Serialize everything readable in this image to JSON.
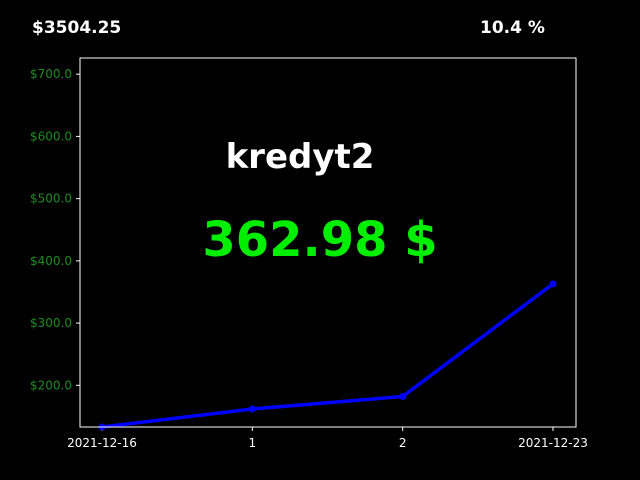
{
  "header": {
    "total": "$3504.25",
    "percent": "10.4 %"
  },
  "overlay": {
    "name": "kredyt2",
    "value": "362.98 $"
  },
  "colors": {
    "background": "#000000",
    "line": "#0000ff",
    "tick_labels_y": "#1e8c1e",
    "value_text": "#00ee00",
    "axes": "#ffffff"
  },
  "chart_data": {
    "type": "line",
    "title": "",
    "xlabel": "",
    "ylabel": "",
    "x_tick_labels": [
      "2021-12-16",
      "1",
      "2",
      "2021-12-23"
    ],
    "series": [
      {
        "values": [
          133,
          162,
          182,
          362.98
        ],
        "marker": "circle"
      }
    ],
    "y_ticks": [
      200,
      300,
      400,
      500,
      600,
      700
    ],
    "y_tick_labels": [
      "$200.0",
      "$300.0",
      "$400.0",
      "$500.0",
      "$600.0",
      "$700.0"
    ],
    "ylim": [
      133,
      726
    ],
    "grid": false,
    "legend": "none"
  }
}
